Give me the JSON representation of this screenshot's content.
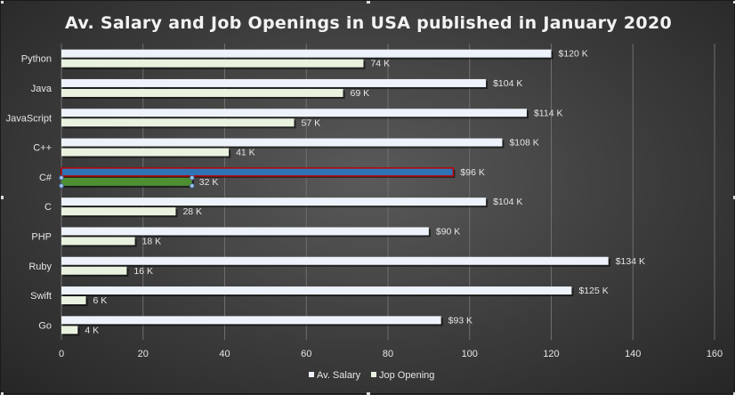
{
  "chart_data": {
    "type": "bar",
    "orientation": "horizontal",
    "title": "Av. Salary and Job Openings in USA published in January 2020",
    "categories": [
      "Python",
      "Java",
      "JavaScript",
      "C++",
      "C#",
      "C",
      "PHP",
      "Ruby",
      "Swift",
      "Go"
    ],
    "series": [
      {
        "name": "Av. Salary",
        "values": [
          120,
          104,
          114,
          108,
          96,
          104,
          90,
          134,
          125,
          93
        ],
        "labels": [
          "$120 K",
          "$104 K",
          "$114 K",
          "$108 K",
          "$96 K",
          "$104 K",
          "$90 K",
          "$134 K",
          "$125 K",
          "$93 K"
        ],
        "color": "#eef3fb"
      },
      {
        "name": "Jop Opening",
        "values": [
          74,
          69,
          57,
          41,
          32,
          28,
          18,
          16,
          6,
          4
        ],
        "labels": [
          "74 K",
          "69 K",
          "57 K",
          "41 K",
          "32 K",
          "28 K",
          "18 K",
          "16 K",
          "6 K",
          "4 K"
        ],
        "color": "#e9f2df"
      }
    ],
    "highlight": {
      "category": "C#",
      "colors": {
        "Av. Salary": "#2e74b5",
        "Jop Opening": "#4e8f32"
      },
      "outline": "#c00000"
    },
    "xlim": [
      0,
      160
    ],
    "xticks": [
      0,
      20,
      40,
      60,
      80,
      100,
      120,
      140,
      160
    ],
    "xlabel": "",
    "ylabel": "",
    "grid": true,
    "legend": "bottom"
  }
}
